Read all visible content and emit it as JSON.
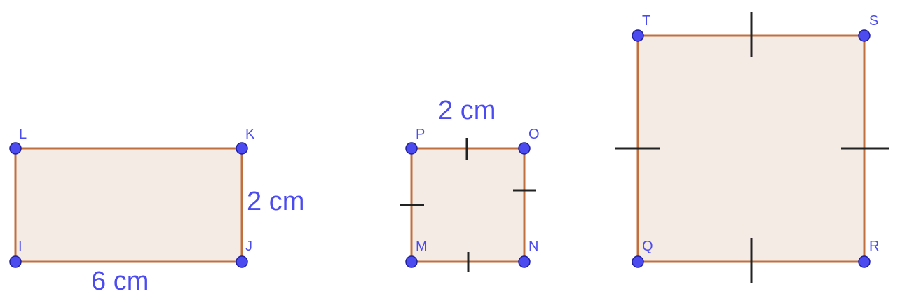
{
  "colors": {
    "outline": "#c0703f",
    "fill": "#f5ebe5",
    "point": "#4b4bf0",
    "label": "#4b4bf0",
    "tick": "#222222"
  },
  "rectangle": {
    "vertices": {
      "L": "L",
      "K": "K",
      "I": "I",
      "J": "J"
    },
    "width_label": "6 cm",
    "height_label": "2 cm"
  },
  "small_square": {
    "vertices": {
      "P": "P",
      "O": "O",
      "M": "M",
      "N": "N"
    },
    "side_label": "2 cm"
  },
  "large_square": {
    "vertices": {
      "T": "T",
      "S": "S",
      "Q": "Q",
      "R": "R"
    }
  }
}
